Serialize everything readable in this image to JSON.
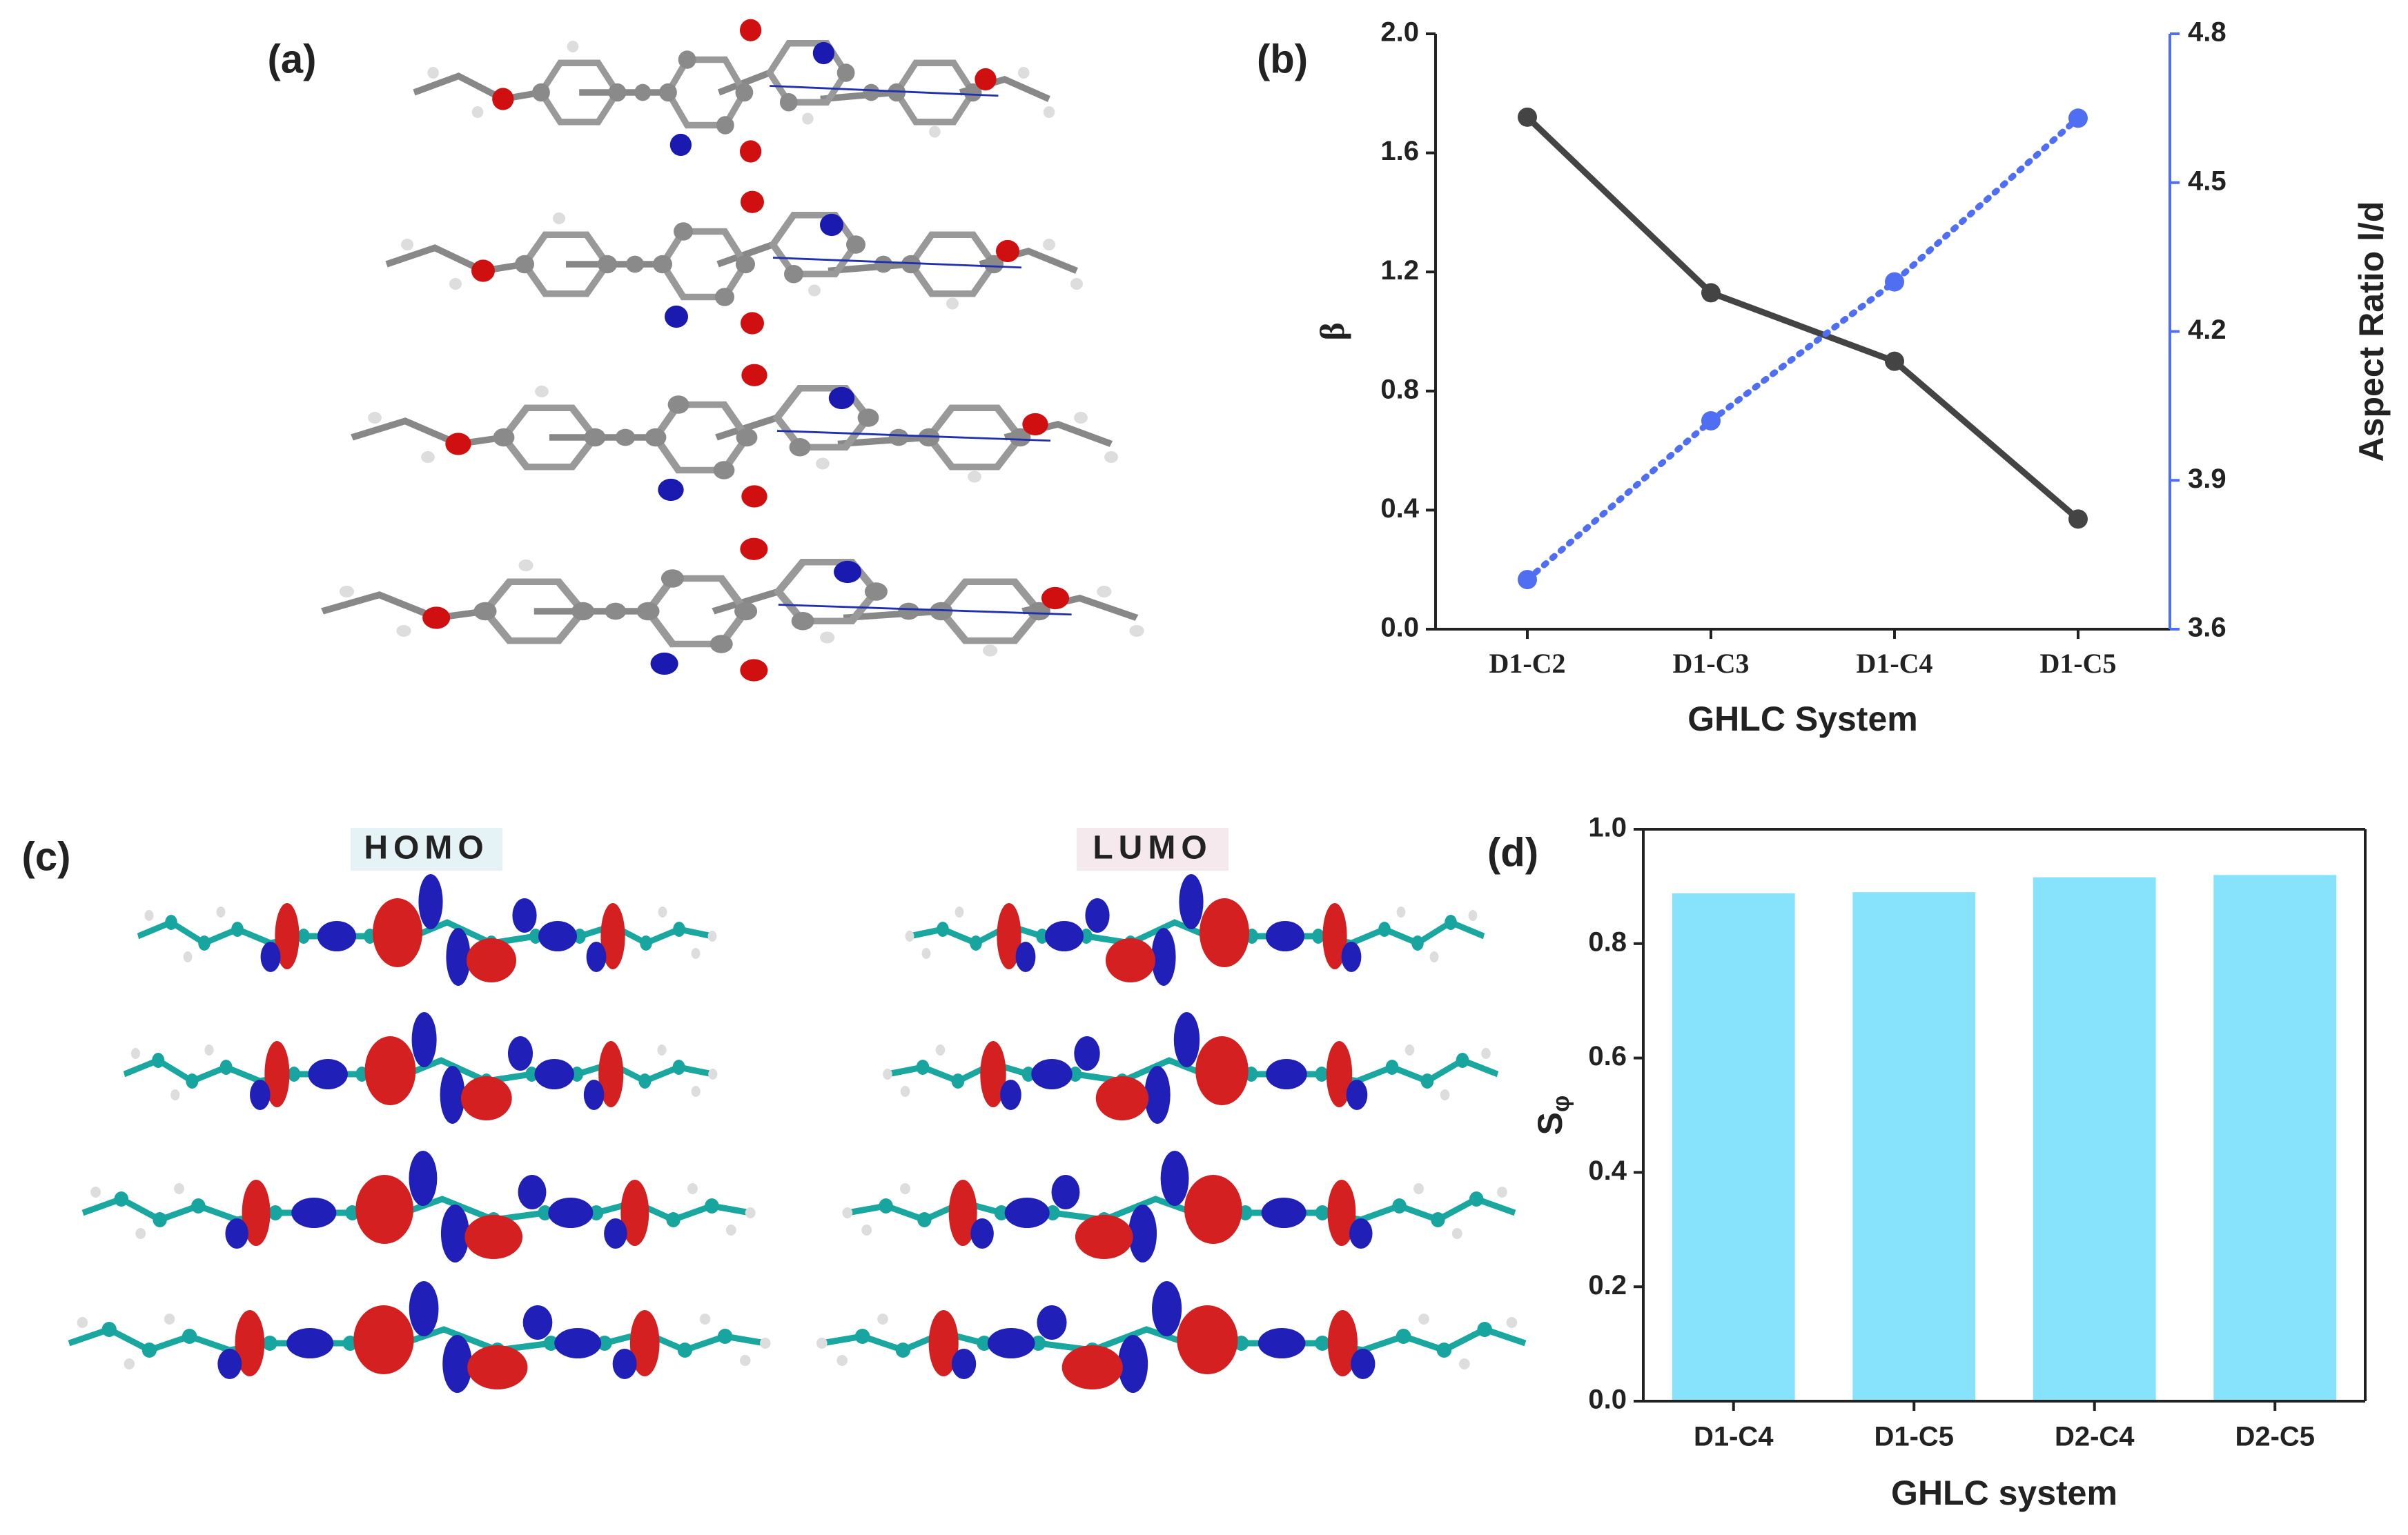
{
  "panel_labels": [
    "(a)",
    "(b)",
    "(c)",
    "(d)"
  ],
  "orbital_labels": [
    "HOMO",
    "LUMO"
  ],
  "chart_data": [
    {
      "type": "line",
      "xlabel": "GHLC System",
      "ylabel": "β",
      "y2label": "Aspect Ratio l/d",
      "categories": [
        "D1-C2",
        "D1-C3",
        "D1-C4",
        "D1-C5"
      ],
      "series": [
        {
          "name": "β",
          "color": "#444444",
          "line_style": "solid",
          "values": [
            1.72,
            1.13,
            0.9,
            0.37
          ]
        },
        {
          "name": "Aspect Ratio l/d",
          "color": "#4f6ef2",
          "line_style": "dotted",
          "axis": "y2",
          "values": [
            3.7,
            4.02,
            4.3,
            4.63
          ]
        }
      ],
      "ylim": [
        0,
        2
      ],
      "yticks": [
        {
          "value": 0,
          "label": "0.0"
        },
        0.4,
        0.8,
        1.2,
        1.6,
        {
          "value": 2,
          "label": "2.0"
        }
      ],
      "y2lim": [
        3.6,
        4.8
      ],
      "y2ticks": [
        3.6,
        3.9,
        4.2,
        4.5,
        4.8
      ],
      "y2color": "#4f6ef2"
    },
    {
      "type": "bar",
      "xlabel": "GHLC system",
      "ylabel": "S",
      "ylabel_subscript": "φ",
      "categories": [
        "D1-C4",
        "D1-C5",
        "D2-C4",
        "D2-C5"
      ],
      "values": [
        0.888,
        0.89,
        0.916,
        0.92
      ],
      "color": "#86e3fb",
      "ylim": [
        0,
        1
      ],
      "yticks": [
        {
          "value": 0,
          "label": "0.0"
        },
        0.2,
        0.4,
        0.6,
        0.8,
        {
          "value": 1,
          "label": "1.0"
        }
      ]
    }
  ]
}
